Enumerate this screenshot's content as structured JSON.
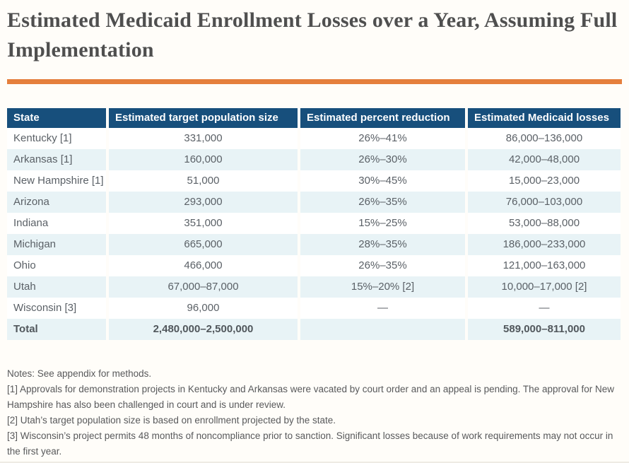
{
  "page": {
    "title": "Estimated Medicaid Enrollment Losses over a Year, Assuming Full Implementation"
  },
  "colors": {
    "accent_orange": "#E57F3D",
    "header_blue": "#174F7C",
    "row_stripe_blue": "#E8F3F6",
    "title_gray": "#4F4F4F",
    "body_text_gray": "#5B6167"
  },
  "table": {
    "headers": [
      "State",
      "Estimated target population size",
      "Estimated percent reduction",
      "Estimated Medicaid losses"
    ],
    "rows": [
      {
        "state": "Kentucky [1]",
        "population": "331,000",
        "reduction": "26%–41%",
        "losses": "86,000–136,000"
      },
      {
        "state": "Arkansas [1]",
        "population": "160,000",
        "reduction": "26%–30%",
        "losses": "42,000–48,000"
      },
      {
        "state": "New Hampshire [1]",
        "population": "51,000",
        "reduction": "30%–45%",
        "losses": "15,000–23,000"
      },
      {
        "state": "Arizona",
        "population": "293,000",
        "reduction": "26%–35%",
        "losses": "76,000–103,000"
      },
      {
        "state": "Indiana",
        "population": "351,000",
        "reduction": "15%–25%",
        "losses": "53,000–88,000"
      },
      {
        "state": "Michigan",
        "population": "665,000",
        "reduction": "28%–35%",
        "losses": "186,000–233,000"
      },
      {
        "state": "Ohio",
        "population": "466,000",
        "reduction": "26%–35%",
        "losses": "121,000–163,000"
      },
      {
        "state": "Utah",
        "population": "67,000–87,000",
        "reduction": "15%–20% [2]",
        "losses": "10,000–17,000 [2]"
      },
      {
        "state": "Wisconsin [3]",
        "population": "96,000",
        "reduction": "—",
        "losses": "—"
      }
    ],
    "total_row": {
      "state": "Total",
      "population": "2,480,000–2,500,000",
      "reduction": "",
      "losses": "589,000–811,000"
    }
  },
  "notes": [
    "Notes: See appendix for methods.",
    "[1] Approvals for demonstration projects in Kentucky and Arkansas were vacated by court order and an appeal is pending. The approval for New Hampshire has also been challenged in court and is under review.",
    "[2] Utah’s target population size is based on enrollment projected by the state.",
    "[3] Wisconsin’s project permits 48 months of noncompliance prior to sanction. Significant losses because of work requirements may not occur in the first year."
  ]
}
